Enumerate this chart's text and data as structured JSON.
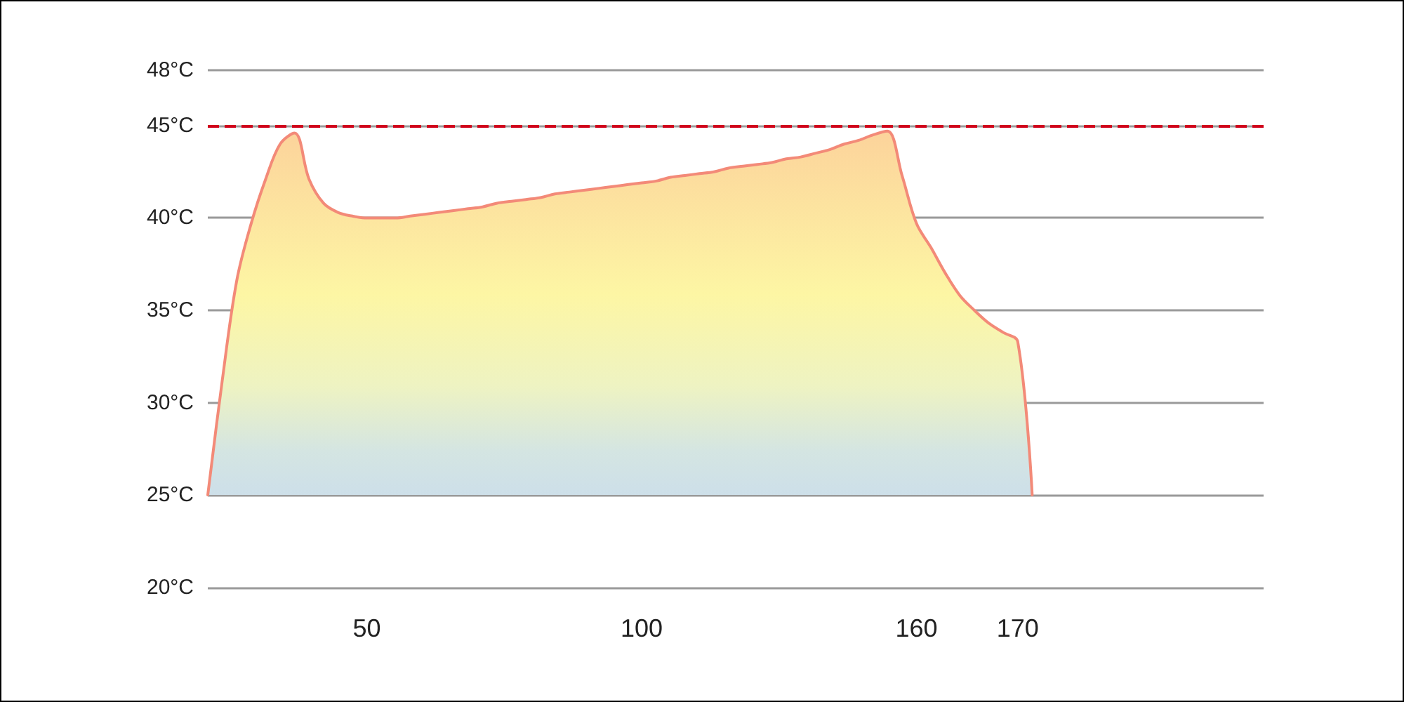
{
  "chart_data": {
    "type": "area",
    "categories": [
      null,
      null,
      null,
      null,
      null,
      null,
      null,
      null,
      null,
      null,
      null,
      "50",
      null,
      null,
      null,
      null,
      null,
      null,
      null,
      null,
      null,
      null,
      null,
      null,
      null,
      null,
      null,
      null,
      null,
      null,
      "100",
      null,
      null,
      null,
      null,
      null,
      null,
      null,
      null,
      null,
      null,
      null,
      null,
      null,
      null,
      null,
      null,
      null,
      null,
      "160",
      null,
      null,
      null,
      null,
      null,
      null,
      "170",
      null,
      null,
      null,
      null,
      null,
      null,
      null,
      null,
      null,
      null,
      null,
      null,
      null,
      null,
      null,
      null,
      null
    ],
    "values": [
      25,
      31.2,
      36.6,
      39.7,
      42.1,
      44.0,
      44.6,
      42.1,
      40.8,
      40.3,
      40.1,
      40.0,
      40.0,
      40.0,
      40.1,
      40.2,
      40.3,
      40.4,
      40.5,
      40.6,
      40.8,
      40.9,
      41.0,
      41.1,
      41.3,
      41.4,
      41.5,
      41.6,
      41.7,
      41.8,
      41.9,
      42.0,
      42.2,
      42.3,
      42.4,
      42.5,
      42.7,
      42.8,
      42.9,
      43.0,
      43.2,
      43.3,
      43.5,
      43.7,
      44.0,
      44.2,
      44.5,
      44.7,
      42.3,
      39.7,
      38.4,
      37.0,
      35.8,
      35.0,
      34.3,
      33.8,
      33.3,
      25,
      null,
      null,
      null,
      null,
      null,
      null,
      null,
      null,
      null,
      null,
      null,
      null,
      null,
      null,
      null,
      null
    ],
    "color": "#f38a78",
    "ylim": [
      20,
      48
    ],
    "yticks": [
      {
        "value": 20,
        "label": "20°C"
      },
      {
        "value": 25,
        "label": "25°C"
      },
      {
        "value": 30,
        "label": "30°C"
      },
      {
        "value": 35,
        "label": "35°C"
      },
      {
        "value": 40,
        "label": "40°C"
      },
      {
        "value": 45,
        "label": "45°C"
      },
      {
        "value": 48,
        "label": "48°C"
      }
    ],
    "grid": "y",
    "ref_lines": [
      {
        "axis": "y",
        "value": 45,
        "color": "#d0021b",
        "line_style": "dashed"
      }
    ]
  }
}
